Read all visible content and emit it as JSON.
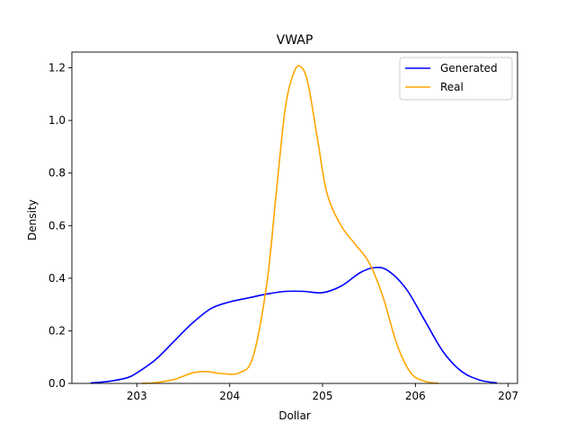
{
  "chart_data": {
    "type": "line",
    "title": "VWAP",
    "xlabel": "Dollar",
    "ylabel": "Density",
    "xlim": [
      202.3,
      207.1
    ],
    "ylim": [
      0,
      1.26
    ],
    "x_ticks": [
      203,
      204,
      205,
      206,
      207
    ],
    "y_ticks": [
      0.0,
      0.2,
      0.4,
      0.6,
      0.8,
      1.0,
      1.2
    ],
    "grid": false,
    "legend_position": "top-right",
    "series": [
      {
        "name": "Generated",
        "color": "#0000ff",
        "x": [
          202.5,
          202.7,
          202.9,
          203.0,
          203.2,
          203.4,
          203.6,
          203.8,
          204.0,
          204.2,
          204.4,
          204.6,
          204.8,
          205.0,
          205.2,
          205.4,
          205.55,
          205.7,
          205.9,
          206.1,
          206.3,
          206.5,
          206.7,
          206.88
        ],
        "values": [
          0.002,
          0.008,
          0.022,
          0.04,
          0.09,
          0.16,
          0.23,
          0.285,
          0.31,
          0.325,
          0.34,
          0.35,
          0.35,
          0.345,
          0.37,
          0.42,
          0.44,
          0.43,
          0.36,
          0.24,
          0.12,
          0.045,
          0.012,
          0.002
        ]
      },
      {
        "name": "Real",
        "color": "#ffa500",
        "x": [
          203.05,
          203.2,
          203.4,
          203.6,
          203.75,
          203.9,
          204.1,
          204.25,
          204.4,
          204.5,
          204.6,
          204.7,
          204.78,
          204.85,
          204.95,
          205.05,
          205.2,
          205.35,
          205.5,
          205.65,
          205.8,
          205.95,
          206.1,
          206.25
        ],
        "values": [
          0.0,
          0.003,
          0.015,
          0.04,
          0.045,
          0.038,
          0.04,
          0.1,
          0.38,
          0.72,
          1.05,
          1.19,
          1.2,
          1.13,
          0.92,
          0.72,
          0.6,
          0.53,
          0.46,
          0.33,
          0.15,
          0.04,
          0.008,
          0.0
        ]
      }
    ]
  }
}
